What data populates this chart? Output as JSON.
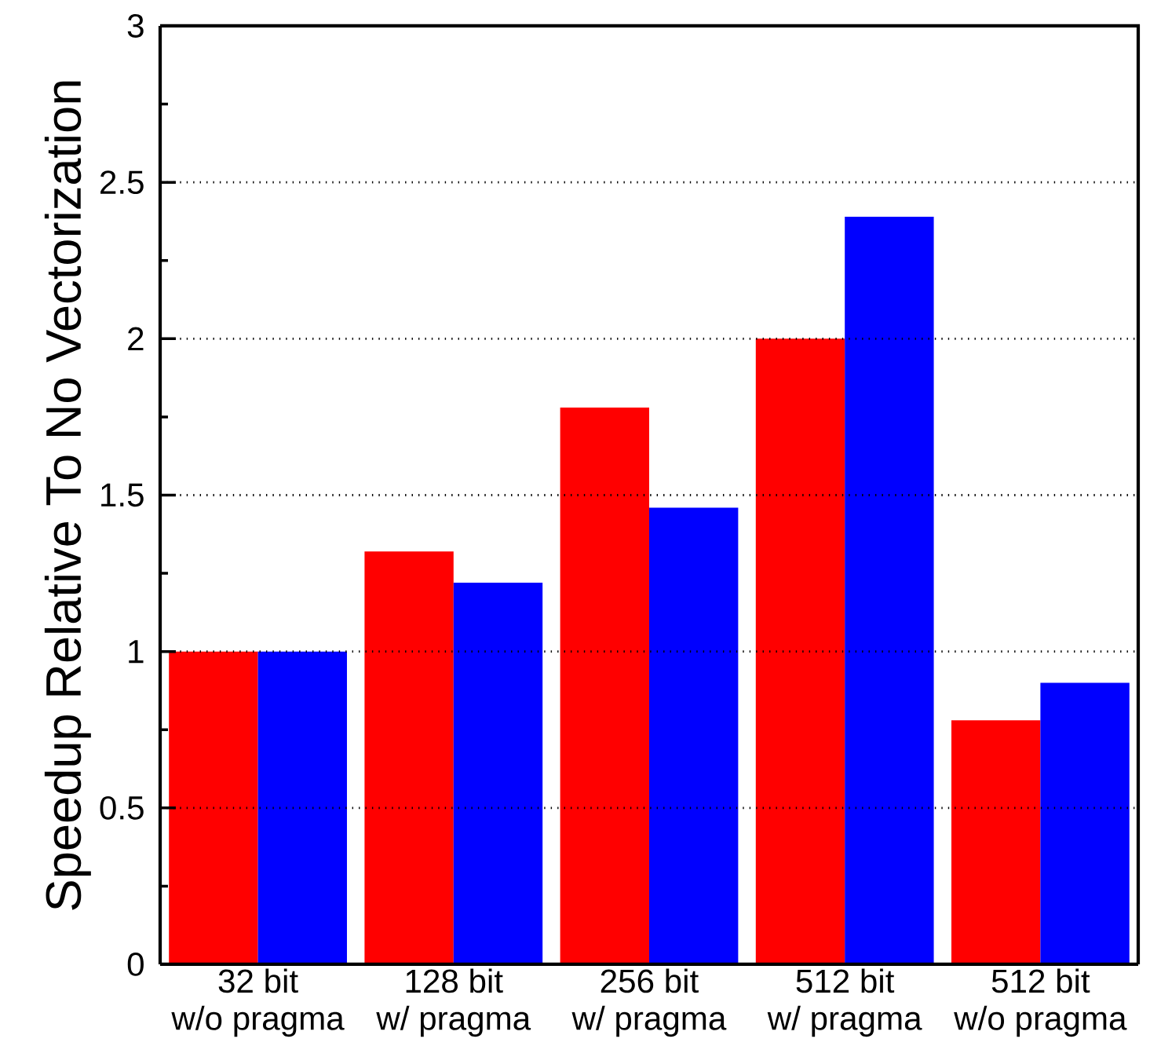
{
  "chart_data": {
    "type": "bar",
    "ylabel": "Speedup Relative To No Vectorization",
    "categories": [
      "32 bit\nw/o pragma",
      "128 bit\nw/ pragma",
      "256 bit\nw/ pragma",
      "512 bit\nw/ pragma",
      "512 bit\nw/o pragma"
    ],
    "series": [
      {
        "color": "#ff0000",
        "values": [
          1.0,
          1.32,
          1.78,
          2.0,
          0.78
        ]
      },
      {
        "color": "#0000ff",
        "values": [
          1.0,
          1.22,
          1.46,
          2.39,
          0.9
        ]
      }
    ],
    "ylim": [
      0,
      3
    ],
    "yticks": [
      0,
      {
        "value": 0.25,
        "label": null
      },
      0.5,
      {
        "value": 0.75,
        "label": null
      },
      1,
      {
        "value": 1.25,
        "label": null
      },
      1.5,
      {
        "value": 1.75,
        "label": null
      },
      2,
      {
        "value": 2.25,
        "label": null
      },
      2.5,
      {
        "value": 2.75,
        "label": null
      },
      3
    ],
    "grid": "y"
  }
}
